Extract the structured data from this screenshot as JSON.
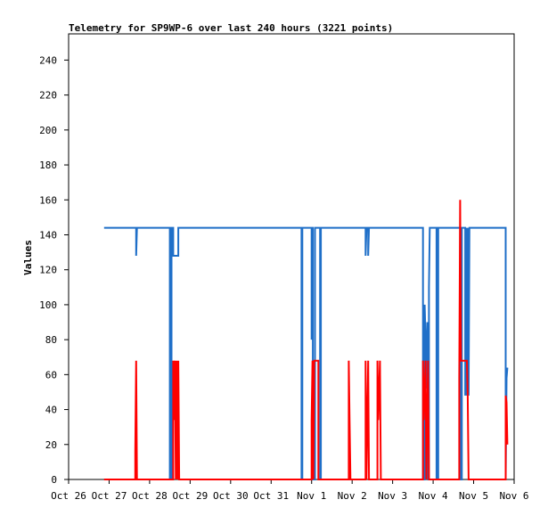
{
  "chart_data": {
    "type": "line",
    "title": "Telemetry for SP9WP-6 over last 240 hours (3221 points)",
    "xlabel": "",
    "ylabel": "Values",
    "xlim": [
      "Oct 26",
      "Nov 6"
    ],
    "ylim": [
      0,
      255
    ],
    "grid": false,
    "legend": "none",
    "x_ticks": [
      "Oct 26",
      "Oct 27",
      "Oct 28",
      "Oct 29",
      "Oct 30",
      "Oct 31",
      "Nov 1",
      "Nov 2",
      "Nov 3",
      "Nov 4",
      "Nov 5",
      "Nov 6"
    ],
    "y_ticks": [
      0,
      20,
      40,
      60,
      80,
      100,
      120,
      140,
      160,
      180,
      200,
      220,
      240
    ],
    "series": [
      {
        "color": "#1f6fc8",
        "points": [
          [
            "Oct 26 21:00",
            144
          ],
          [
            "Oct 27 16:00",
            144
          ],
          [
            "Oct 27 16:00",
            128
          ],
          [
            "Oct 27 16:30",
            144
          ],
          [
            "Oct 28 12:00",
            144
          ],
          [
            "Oct 28 12:00",
            0
          ],
          [
            "Oct 28 13:00",
            0
          ],
          [
            "Oct 28 13:00",
            144
          ],
          [
            "Oct 28 14:00",
            144
          ],
          [
            "Oct 28 14:00",
            128
          ],
          [
            "Oct 28 17:00",
            128
          ],
          [
            "Oct 28 17:00",
            144
          ],
          [
            "Oct 31 18:00",
            144
          ],
          [
            "Oct 31 18:00",
            0
          ],
          [
            "Oct 31 18:30",
            0
          ],
          [
            "Oct 31 18:30",
            144
          ],
          [
            "Nov 1 00:00",
            144
          ],
          [
            "Nov 1 00:00",
            80
          ],
          [
            "Nov 1 00:30",
            144
          ],
          [
            "Nov 1 00:45",
            144
          ],
          [
            "Nov 1 00:45",
            0
          ],
          [
            "Nov 1 02:00",
            0
          ],
          [
            "Nov 1 02:00",
            144
          ],
          [
            "Nov 1 05:00",
            144
          ],
          [
            "Nov 1 05:00",
            0
          ],
          [
            "Nov 1 05:30",
            0
          ],
          [
            "Nov 1 05:30",
            144
          ],
          [
            "Nov 2 08:00",
            144
          ],
          [
            "Nov 2 08:00",
            128
          ],
          [
            "Nov 2 08:30",
            144
          ],
          [
            "Nov 2 09:30",
            144
          ],
          [
            "Nov 2 09:30",
            128
          ],
          [
            "Nov 2 10:00",
            144
          ],
          [
            "Nov 3 18:00",
            144
          ],
          [
            "Nov 3 18:00",
            0
          ],
          [
            "Nov 3 19:00",
            0
          ],
          [
            "Nov 3 19:00",
            100
          ],
          [
            "Nov 3 19:30",
            80
          ],
          [
            "Nov 3 20:00",
            52
          ],
          [
            "Nov 3 20:30",
            90
          ],
          [
            "Nov 3 21:00",
            0
          ],
          [
            "Nov 3 21:30",
            0
          ],
          [
            "Nov 3 21:30",
            110
          ],
          [
            "Nov 3 22:00",
            144
          ],
          [
            "Nov 4 02:00",
            144
          ],
          [
            "Nov 4 02:00",
            0
          ],
          [
            "Nov 4 03:00",
            0
          ],
          [
            "Nov 4 03:00",
            144
          ],
          [
            "Nov 4 16:00",
            144
          ],
          [
            "Nov 4 16:00",
            0
          ],
          [
            "Nov 4 17:00",
            0
          ],
          [
            "Nov 4 17:00",
            144
          ],
          [
            "Nov 4 19:00",
            144
          ],
          [
            "Nov 4 19:00",
            48
          ],
          [
            "Nov 4 19:30",
            144
          ],
          [
            "Nov 4 20:00",
            48
          ],
          [
            "Nov 4 20:30",
            144
          ],
          [
            "Nov 4 21:00",
            48
          ],
          [
            "Nov 4 21:30",
            144
          ],
          [
            "Nov 5 19:00",
            144
          ],
          [
            "Nov 5 19:00",
            0
          ],
          [
            "Nov 5 19:30",
            58
          ],
          [
            "Nov 5 20:00",
            64
          ]
        ]
      },
      {
        "color": "#ff0000",
        "points": [
          [
            "Oct 26 21:00",
            0
          ],
          [
            "Oct 27 15:30",
            0
          ],
          [
            "Oct 27 15:30",
            16
          ],
          [
            "Oct 27 16:00",
            68
          ],
          [
            "Oct 27 16:30",
            0
          ],
          [
            "Oct 28 14:00",
            0
          ],
          [
            "Oct 28 14:00",
            68
          ],
          [
            "Oct 28 14:30",
            34
          ],
          [
            "Oct 28 15:00",
            68
          ],
          [
            "Oct 28 15:30",
            0
          ],
          [
            "Oct 28 16:00",
            68
          ],
          [
            "Oct 28 16:30",
            0
          ],
          [
            "Oct 28 17:00",
            68
          ],
          [
            "Oct 28 17:30",
            0
          ],
          [
            "Nov 1 00:00",
            0
          ],
          [
            "Nov 1 00:00",
            34
          ],
          [
            "Nov 1 00:30",
            68
          ],
          [
            "Nov 1 01:00",
            0
          ],
          [
            "Nov 1 01:30",
            68
          ],
          [
            "Nov 1 04:00",
            68
          ],
          [
            "Nov 1 04:00",
            0
          ],
          [
            "Nov 1 22:00",
            0
          ],
          [
            "Nov 1 22:00",
            68
          ],
          [
            "Nov 1 22:30",
            34
          ],
          [
            "Nov 1 23:00",
            0
          ],
          [
            "Nov 2 08:00",
            0
          ],
          [
            "Nov 2 08:00",
            68
          ],
          [
            "Nov 2 08:30",
            0
          ],
          [
            "Nov 2 09:30",
            68
          ],
          [
            "Nov 2 10:00",
            0
          ],
          [
            "Nov 2 15:00",
            0
          ],
          [
            "Nov 2 15:00",
            68
          ],
          [
            "Nov 2 15:30",
            34
          ],
          [
            "Nov 2 16:30",
            68
          ],
          [
            "Nov 2 17:00",
            0
          ],
          [
            "Nov 3 18:00",
            0
          ],
          [
            "Nov 3 18:00",
            68
          ],
          [
            "Nov 3 18:30",
            34
          ],
          [
            "Nov 3 19:30",
            68
          ],
          [
            "Nov 3 20:00",
            0
          ],
          [
            "Nov 3 21:00",
            68
          ],
          [
            "Nov 3 21:30",
            0
          ],
          [
            "Nov 4 15:30",
            0
          ],
          [
            "Nov 4 15:30",
            58
          ],
          [
            "Nov 4 16:00",
            160
          ],
          [
            "Nov 4 16:30",
            68
          ],
          [
            "Nov 4 20:00",
            68
          ],
          [
            "Nov 4 20:30",
            48
          ],
          [
            "Nov 4 21:00",
            0
          ],
          [
            "Nov 5 19:00",
            0
          ],
          [
            "Nov 5 19:00",
            48
          ],
          [
            "Nov 5 19:30",
            44
          ],
          [
            "Nov 5 20:00",
            20
          ]
        ]
      }
    ]
  }
}
